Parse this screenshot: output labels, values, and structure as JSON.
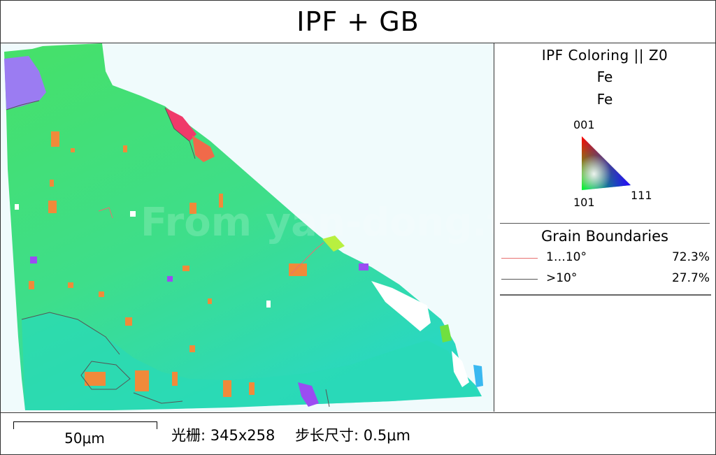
{
  "title": "IPF + GB",
  "watermark": "From yan-dong.top",
  "legend": {
    "ipf_title": "IPF Coloring || Z0",
    "phase_lines": [
      "Fe",
      "Fe"
    ],
    "triangle_labels": {
      "top": "001",
      "bottom_left": "101",
      "bottom_right": "111"
    },
    "gb_title": "Grain Boundaries",
    "rows": [
      {
        "label": "1…10°",
        "percent": "72.3%",
        "color": "#e87070"
      },
      {
        "label": ">10°",
        "percent": "27.7%",
        "color": "#555555"
      }
    ]
  },
  "footer": {
    "scale_label": "50μm",
    "raster": "光栅: 345x258",
    "step": "步长尺寸: 0.5μm"
  },
  "colors": {
    "background": "#f0fbfc",
    "green": "#3ee06e",
    "teal": "#2cd9b0",
    "orange": "#f08a3a",
    "purple": "#9b7cf2",
    "red": "#f03a6a"
  }
}
